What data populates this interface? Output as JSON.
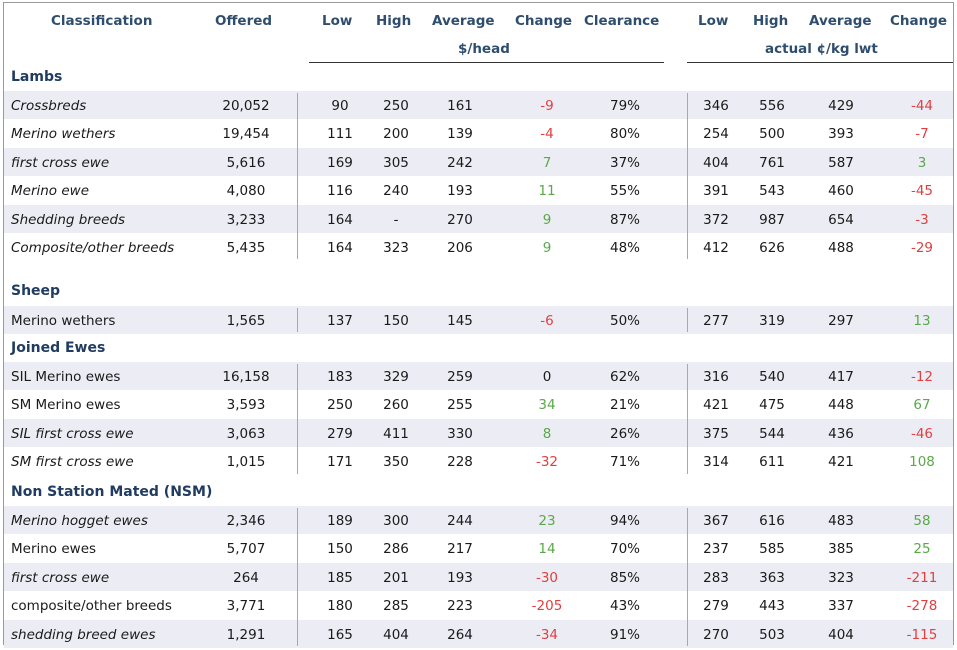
{
  "header": {
    "classification": "Classification",
    "offered": "Offered",
    "low": "Low",
    "high": "High",
    "average": "Average",
    "change": "Change",
    "clearance": "Clearance",
    "low2": "Low",
    "high2": "High",
    "average2": "Average",
    "change2": "Change",
    "unit_head": "$/head",
    "unit_kg": "actual ¢/kg lwt"
  },
  "colors": {
    "header_text": "#2f4e6e",
    "section_text": "#203c60",
    "positive": "#5aa84a",
    "negative": "#e04040",
    "stripe": "#ecedf4"
  },
  "sections": [
    {
      "title": "Lambs",
      "rows": [
        {
          "name": "Crossbreds",
          "italic": true,
          "offered": "20,052",
          "low": "90",
          "high": "250",
          "avg": "161",
          "change": "-9",
          "clearance": "79%",
          "kg_low": "346",
          "kg_high": "556",
          "kg_avg": "429",
          "kg_change": "-44"
        },
        {
          "name": "Merino wethers",
          "italic": true,
          "offered": "19,454",
          "low": "111",
          "high": "200",
          "avg": "139",
          "change": "-4",
          "clearance": "80%",
          "kg_low": "254",
          "kg_high": "500",
          "kg_avg": "393",
          "kg_change": "-7"
        },
        {
          "name": "first cross ewe",
          "italic": true,
          "offered": "5,616",
          "low": "169",
          "high": "305",
          "avg": "242",
          "change": "7",
          "clearance": "37%",
          "kg_low": "404",
          "kg_high": "761",
          "kg_avg": "587",
          "kg_change": "3"
        },
        {
          "name": "Merino ewe",
          "italic": true,
          "offered": "4,080",
          "low": "116",
          "high": "240",
          "avg": "193",
          "change": "11",
          "clearance": "55%",
          "kg_low": "391",
          "kg_high": "543",
          "kg_avg": "460",
          "kg_change": "-45"
        },
        {
          "name": "Shedding breeds",
          "italic": true,
          "offered": "3,233",
          "low": "164",
          "high": "-",
          "avg": "270",
          "change": "9",
          "clearance": "87%",
          "kg_low": "372",
          "kg_high": "987",
          "kg_avg": "654",
          "kg_change": "-3"
        },
        {
          "name": "Composite/other breeds",
          "italic": true,
          "offered": "5,435",
          "low": "164",
          "high": "323",
          "avg": "206",
          "change": "9",
          "clearance": "48%",
          "kg_low": "412",
          "kg_high": "626",
          "kg_avg": "488",
          "kg_change": "-29"
        }
      ]
    },
    {
      "title": "Sheep",
      "rows": [
        {
          "name": "Merino wethers",
          "italic": false,
          "offered": "1,565",
          "low": "137",
          "high": "150",
          "avg": "145",
          "change": "-6",
          "clearance": "50%",
          "kg_low": "277",
          "kg_high": "319",
          "kg_avg": "297",
          "kg_change": "13"
        }
      ]
    },
    {
      "title": "Joined Ewes",
      "rows": [
        {
          "name": "SIL Merino ewes",
          "italic": false,
          "offered": "16,158",
          "low": "183",
          "high": "329",
          "avg": "259",
          "change": "0",
          "clearance": "62%",
          "kg_low": "316",
          "kg_high": "540",
          "kg_avg": "417",
          "kg_change": "-12"
        },
        {
          "name": "SM Merino ewes",
          "italic": false,
          "offered": "3,593",
          "low": "250",
          "high": "260",
          "avg": "255",
          "change": "34",
          "clearance": "21%",
          "kg_low": "421",
          "kg_high": "475",
          "kg_avg": "448",
          "kg_change": "67"
        },
        {
          "name": "SIL first cross ewe",
          "italic": true,
          "offered": "3,063",
          "low": "279",
          "high": "411",
          "avg": "330",
          "change": "8",
          "clearance": "26%",
          "kg_low": "375",
          "kg_high": "544",
          "kg_avg": "436",
          "kg_change": "-46"
        },
        {
          "name": "SM first cross ewe",
          "italic": true,
          "offered": "1,015",
          "low": "171",
          "high": "350",
          "avg": "228",
          "change": "-32",
          "clearance": "71%",
          "kg_low": "314",
          "kg_high": "611",
          "kg_avg": "421",
          "kg_change": "108"
        }
      ]
    },
    {
      "title": "Non Station Mated (NSM)",
      "rows": [
        {
          "name": "Merino hogget ewes",
          "italic": true,
          "offered": "2,346",
          "low": "189",
          "high": "300",
          "avg": "244",
          "change": "23",
          "clearance": "94%",
          "kg_low": "367",
          "kg_high": "616",
          "kg_avg": "483",
          "kg_change": "58"
        },
        {
          "name": "Merino ewes",
          "italic": false,
          "offered": "5,707",
          "low": "150",
          "high": "286",
          "avg": "217",
          "change": "14",
          "clearance": "70%",
          "kg_low": "237",
          "kg_high": "585",
          "kg_avg": "385",
          "kg_change": "25"
        },
        {
          "name": "first cross ewe",
          "italic": true,
          "offered": "264",
          "low": "185",
          "high": "201",
          "avg": "193",
          "change": "-30",
          "clearance": "85%",
          "kg_low": "283",
          "kg_high": "363",
          "kg_avg": "323",
          "kg_change": "-211"
        },
        {
          "name": "composite/other breeds",
          "italic": false,
          "offered": "3,771",
          "low": "180",
          "high": "285",
          "avg": "223",
          "change": "-205",
          "clearance": "43%",
          "kg_low": "279",
          "kg_high": "443",
          "kg_avg": "337",
          "kg_change": "-278"
        },
        {
          "name": "shedding breed ewes",
          "italic": true,
          "offered": "1,291",
          "low": "165",
          "high": "404",
          "avg": "264",
          "change": "-34",
          "clearance": "91%",
          "kg_low": "270",
          "kg_high": "503",
          "kg_avg": "404",
          "kg_change": "-115"
        }
      ]
    }
  ]
}
